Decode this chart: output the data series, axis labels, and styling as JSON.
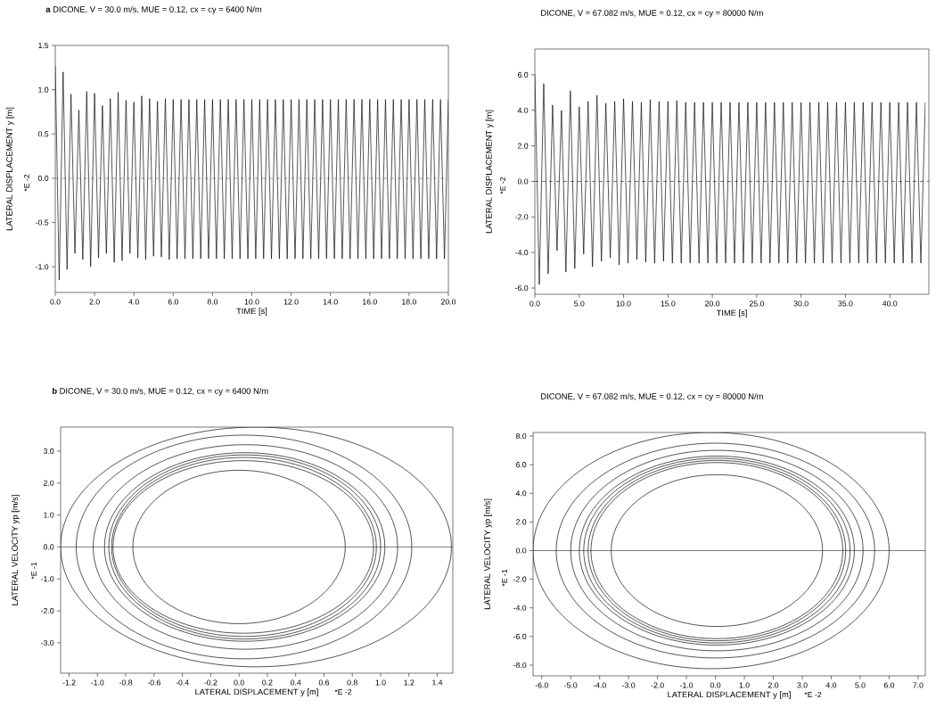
{
  "chart_data": [
    {
      "type": "line",
      "title": "**a**   DICONE, V = 30.0 m/s, MUE = 0.12, cx = cy = 6400 N/m",
      "xlabel": "TIME [s]",
      "ylabel": "LATERAL DISPLACEMENT y [m]",
      "annotations": [
        "*E -2"
      ],
      "color": "#000000",
      "x": [
        0,
        0.2,
        0.4,
        0.6,
        0.8,
        1,
        1.2,
        1.4,
        1.6,
        1.8,
        2,
        2.2,
        2.4,
        2.6,
        2.8,
        3,
        3.2,
        3.4,
        3.6,
        3.8,
        4,
        4.2,
        4.4,
        4.6,
        4.8,
        5,
        5.2,
        5.4,
        5.6,
        5.8,
        6,
        6.2,
        6.4,
        6.6,
        6.8,
        7,
        7.2,
        7.4,
        7.6,
        7.8,
        8,
        8.2,
        8.4,
        8.6,
        8.8,
        9,
        9.2,
        9.4,
        9.6,
        9.8,
        10,
        10.2,
        10.4,
        10.6,
        10.8,
        11,
        11.2,
        11.4,
        11.6,
        11.8,
        12,
        12.2,
        12.4,
        12.6,
        12.8,
        13,
        13.2,
        13.4,
        13.6,
        13.8,
        14,
        14.2,
        14.4,
        14.6,
        14.8,
        15,
        15.2,
        15.4,
        15.6,
        15.8,
        16,
        16.2,
        16.4,
        16.6,
        16.8,
        17,
        17.2,
        17.4,
        17.6,
        17.8,
        18,
        18.2,
        18.4,
        18.6,
        18.8,
        19,
        19.2,
        19.4,
        19.6,
        19.8,
        20
      ],
      "values": [
        1.27,
        -1.15,
        1.2,
        -1.03,
        0.95,
        -0.85,
        0.77,
        -0.92,
        0.98,
        -1.0,
        0.96,
        -0.9,
        0.82,
        -0.85,
        0.9,
        -0.95,
        0.97,
        -0.93,
        0.88,
        -0.85,
        0.86,
        -0.9,
        0.93,
        -0.92,
        0.9,
        -0.88,
        0.87,
        -0.89,
        0.9,
        -0.92,
        0.89,
        -0.91,
        0.89,
        -0.91,
        0.89,
        -0.91,
        0.89,
        -0.91,
        0.89,
        -0.91,
        0.89,
        -0.91,
        0.89,
        -0.91,
        0.89,
        -0.91,
        0.89,
        -0.91,
        0.89,
        -0.91,
        0.89,
        -0.91,
        0.89,
        -0.91,
        0.89,
        -0.91,
        0.89,
        -0.91,
        0.89,
        -0.91,
        0.89,
        -0.91,
        0.89,
        -0.91,
        0.89,
        -0.91,
        0.89,
        -0.91,
        0.89,
        -0.91,
        0.89,
        -0.91,
        0.89,
        -0.91,
        0.89,
        -0.91,
        0.89,
        -0.91,
        0.89,
        -0.91,
        0.89,
        -0.91,
        0.89,
        -0.91,
        0.89,
        -0.91,
        0.89,
        -0.91,
        0.89,
        -0.91,
        0.89,
        -0.91,
        0.89,
        -0.91,
        0.89,
        -0.91,
        0.89,
        -0.91,
        0.89,
        -0.91,
        0.89
      ],
      "xlim": [
        0,
        20
      ],
      "ylim": [
        -1.29,
        1.5
      ],
      "xticks": [
        {
          "value": 0,
          "label": "0.0"
        },
        {
          "value": 2,
          "label": "2.0"
        },
        {
          "value": 4,
          "label": "4.0"
        },
        {
          "value": 6,
          "label": "6.0"
        },
        {
          "value": 8,
          "label": "8.0"
        },
        {
          "value": 10,
          "label": "10.0"
        },
        {
          "value": 12,
          "label": "12.0"
        },
        {
          "value": 14,
          "label": "14.0"
        },
        {
          "value": 16,
          "label": "16.0"
        },
        {
          "value": 18,
          "label": "18.0"
        },
        {
          "value": 20,
          "label": "20.0"
        }
      ],
      "yticks": [
        {
          "value": -1,
          "label": "-1.0"
        },
        {
          "value": -0.5,
          "label": "-0.5"
        },
        {
          "value": 0,
          "label": "0.0"
        },
        {
          "value": 0.5,
          "label": "0.5"
        },
        {
          "value": 1,
          "label": "1.0"
        },
        {
          "value": 1.5,
          "label": "1.5"
        }
      ],
      "ref_lines": [
        {
          "axis": "y",
          "value": 0,
          "color": "#000000",
          "line_style": "dashed"
        }
      ]
    },
    {
      "type": "line",
      "title": "DICONE, V = 67.082 m/s, MUE = 0.12, cx = cy = 80000 N/m",
      "xlabel": "TIME [s]",
      "ylabel": "LATERAL DISPLACEMENT y [m]",
      "annotations": [
        "*E -2"
      ],
      "color": "#000000",
      "x": [
        0,
        0.5,
        1,
        1.5,
        2,
        2.5,
        3,
        3.5,
        4,
        4.5,
        5,
        5.5,
        6,
        6.5,
        7,
        7.5,
        8,
        8.5,
        9,
        9.5,
        10,
        10.5,
        11,
        11.5,
        12,
        12.5,
        13,
        13.5,
        14,
        14.5,
        15,
        15.5,
        16,
        16.5,
        17,
        17.5,
        18,
        18.5,
        19,
        19.5,
        20,
        20.5,
        21,
        21.5,
        22,
        22.5,
        23,
        23.5,
        24,
        24.5,
        25,
        25.5,
        26,
        26.5,
        27,
        27.5,
        28,
        28.5,
        29,
        29.5,
        30,
        30.5,
        31,
        31.5,
        32,
        32.5,
        33,
        33.5,
        34,
        34.5,
        35,
        35.5,
        36,
        36.5,
        37,
        37.5,
        38,
        38.5,
        39,
        39.5,
        40,
        40.5,
        41,
        41.5,
        42,
        42.5,
        43,
        43.5,
        44
      ],
      "values": [
        6.0,
        -5.8,
        5.5,
        -5.2,
        4.3,
        -3.9,
        4.0,
        -5.1,
        5.1,
        -4.9,
        4.2,
        -4.1,
        4.5,
        -4.8,
        4.85,
        -4.5,
        4.4,
        -4.3,
        4.5,
        -4.7,
        4.65,
        -4.6,
        4.5,
        -4.4,
        4.45,
        -4.55,
        4.6,
        -4.6,
        4.5,
        -4.5,
        4.5,
        -4.6,
        4.55,
        -4.6,
        4.45,
        -4.6,
        4.45,
        -4.6,
        4.45,
        -4.6,
        4.45,
        -4.6,
        4.45,
        -4.6,
        4.45,
        -4.6,
        4.45,
        -4.6,
        4.45,
        -4.6,
        4.45,
        -4.6,
        4.45,
        -4.6,
        4.45,
        -4.6,
        4.45,
        -4.6,
        4.45,
        -4.6,
        4.45,
        -4.6,
        4.45,
        -4.6,
        4.45,
        -4.6,
        4.45,
        -4.6,
        4.45,
        -4.6,
        4.45,
        -4.6,
        4.45,
        -4.6,
        4.45,
        -4.6,
        4.45,
        -4.6,
        4.45,
        -4.6,
        4.45,
        -4.6,
        4.45,
        -4.6,
        4.45,
        -4.6,
        4.45,
        -4.6,
        4.45
      ],
      "xlim": [
        0,
        44.4
      ],
      "ylim": [
        -6.35,
        7.45
      ],
      "xticks": [
        {
          "value": 0,
          "label": "0.0"
        },
        {
          "value": 5,
          "label": "5.0"
        },
        {
          "value": 10,
          "label": "10.0"
        },
        {
          "value": 15,
          "label": "15.0"
        },
        {
          "value": 20,
          "label": "20.0"
        },
        {
          "value": 25,
          "label": "25.0"
        },
        {
          "value": 30,
          "label": "30.0"
        },
        {
          "value": 35,
          "label": "35.0"
        },
        {
          "value": 40,
          "label": "40.0"
        }
      ],
      "yticks": [
        {
          "value": -6,
          "label": "-6.0"
        },
        {
          "value": -4,
          "label": "-4.0"
        },
        {
          "value": -2,
          "label": "-2.0"
        },
        {
          "value": 0,
          "label": "0.0"
        },
        {
          "value": 2,
          "label": "2.0"
        },
        {
          "value": 4,
          "label": "4.0"
        },
        {
          "value": 6,
          "label": "6.0"
        }
      ],
      "ref_lines": [
        {
          "axis": "y",
          "value": 0,
          "color": "#000000",
          "line_style": "dashed"
        }
      ]
    },
    {
      "type": "line",
      "title": "**b**   DICONE, V = 30.0 m/s, MUE = 0.12, cx = cy = 6400 N/m",
      "xlabel": "LATERAL DISPLACEMENT y [m]",
      "ylabel": "LATERAL VELOCITY yp [m/s]",
      "annotations": [
        "*E -2",
        "*E -1"
      ],
      "xlim": [
        -1.26,
        1.51
      ],
      "ylim": [
        -3.95,
        3.75
      ],
      "xticks": [
        {
          "value": -1.2,
          "label": "-1.2"
        },
        {
          "value": -1,
          "label": "-1.0"
        },
        {
          "value": -0.8,
          "label": "-0.8"
        },
        {
          "value": -0.6,
          "label": "-0.6"
        },
        {
          "value": -0.4,
          "label": "-0.4"
        },
        {
          "value": -0.2,
          "label": "-0.2"
        },
        {
          "value": 0,
          "label": "0.0"
        },
        {
          "value": 0.2,
          "label": "0.2"
        },
        {
          "value": 0.4,
          "label": "0.4"
        },
        {
          "value": 0.6,
          "label": "0.6"
        },
        {
          "value": 0.8,
          "label": "0.8"
        },
        {
          "value": 1,
          "label": "1.0"
        },
        {
          "value": 1.2,
          "label": "1.2"
        },
        {
          "value": 1.4,
          "label": "1.4"
        }
      ],
      "yticks": [
        {
          "value": -3,
          "label": "-3.0"
        },
        {
          "value": -2,
          "label": "-2.0"
        },
        {
          "value": -1,
          "label": "-1.0"
        },
        {
          "value": 0,
          "label": "0.0"
        },
        {
          "value": 1,
          "label": "1.0"
        },
        {
          "value": 2,
          "label": "2.0"
        },
        {
          "value": 3,
          "label": "3.0"
        }
      ],
      "ref_lines": [
        {
          "axis": "y",
          "value": 0,
          "color": "#000000",
          "line_style": "solid"
        }
      ]
    },
    {
      "type": "line",
      "title": "DICONE, V = 67.082 m/s, MUE = 0.12, cx = cy = 80000 N/m",
      "xlabel": "LATERAL DISPLACEMENT y [m]",
      "ylabel": "LATERAL VELOCITY yp [m/s]",
      "annotations": [
        "*E -2",
        "*E -1"
      ],
      "xlim": [
        -6.3,
        7.25
      ],
      "ylim": [
        -8.75,
        8.25
      ],
      "xticks": [
        {
          "value": -6,
          "label": "-6.0"
        },
        {
          "value": -5,
          "label": "-5.0"
        },
        {
          "value": -4,
          "label": "-4.0"
        },
        {
          "value": -3,
          "label": "-3.0"
        },
        {
          "value": -2,
          "label": "-2.0"
        },
        {
          "value": -1,
          "label": "-1.0"
        },
        {
          "value": 0,
          "label": "0.0"
        },
        {
          "value": 1,
          "label": "1.0"
        },
        {
          "value": 2,
          "label": "2.0"
        },
        {
          "value": 3,
          "label": "3.0"
        },
        {
          "value": 4,
          "label": "4.0"
        },
        {
          "value": 5,
          "label": "5.0"
        },
        {
          "value": 6,
          "label": "6.0"
        },
        {
          "value": 7,
          "label": "7.0"
        }
      ],
      "yticks": [
        {
          "value": -8,
          "label": "-8.0"
        },
        {
          "value": -6,
          "label": "-6.0"
        },
        {
          "value": -4,
          "label": "-4.0"
        },
        {
          "value": -2,
          "label": "-2.0"
        },
        {
          "value": 0,
          "label": "0.0"
        },
        {
          "value": 2,
          "label": "2.0"
        },
        {
          "value": 4,
          "label": "4.0"
        },
        {
          "value": 6,
          "label": "6.0"
        },
        {
          "value": 8,
          "label": "8.0"
        }
      ],
      "ref_lines": [
        {
          "axis": "y",
          "value": 0,
          "color": "#000000",
          "line_style": "solid"
        }
      ]
    }
  ]
}
